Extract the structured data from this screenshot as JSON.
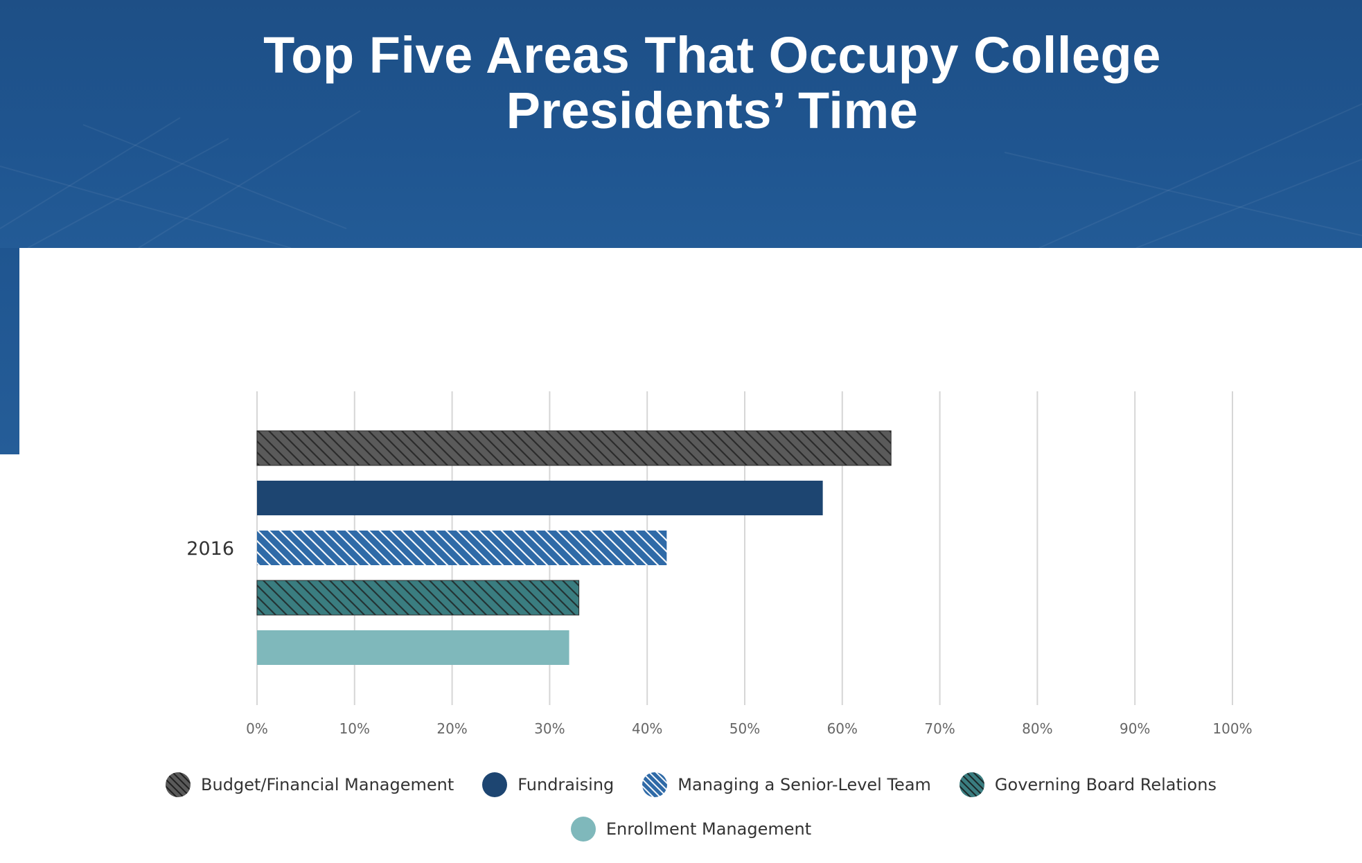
{
  "chart_data": {
    "type": "bar",
    "orientation": "horizontal",
    "title": "Top Five Areas That Occupy College Presidents’ Time",
    "categories": [
      "2016"
    ],
    "series": [
      {
        "name": "Budget/Financial Management",
        "values": [
          65
        ],
        "color": "#5a5a5a",
        "pattern": "hatch-dark"
      },
      {
        "name": "Fundraising",
        "values": [
          58
        ],
        "color": "#1d4571",
        "pattern": "solid"
      },
      {
        "name": "Managing a Senior-Level Team",
        "values": [
          42
        ],
        "color": "#2f6aa7",
        "pattern": "hatch-white"
      },
      {
        "name": "Governing Board Relations",
        "values": [
          33
        ],
        "color": "#3a7d80",
        "pattern": "hatch-dark"
      },
      {
        "name": "Enrollment Management",
        "values": [
          32
        ],
        "color": "#7fb8bb",
        "pattern": "solid"
      }
    ],
    "xlim": [
      0,
      100
    ],
    "x_ticks": [
      "0%",
      "10%",
      "20%",
      "30%",
      "40%",
      "50%",
      "60%",
      "70%",
      "80%",
      "90%",
      "100%"
    ],
    "grid": true,
    "legend_position": "bottom"
  },
  "header": {
    "title_line1": "Top Five Areas That Occupy College",
    "title_line2": "Presidents’ Time"
  },
  "colors": {
    "banner": "#1f5590",
    "grid": "#d6d6d6"
  }
}
